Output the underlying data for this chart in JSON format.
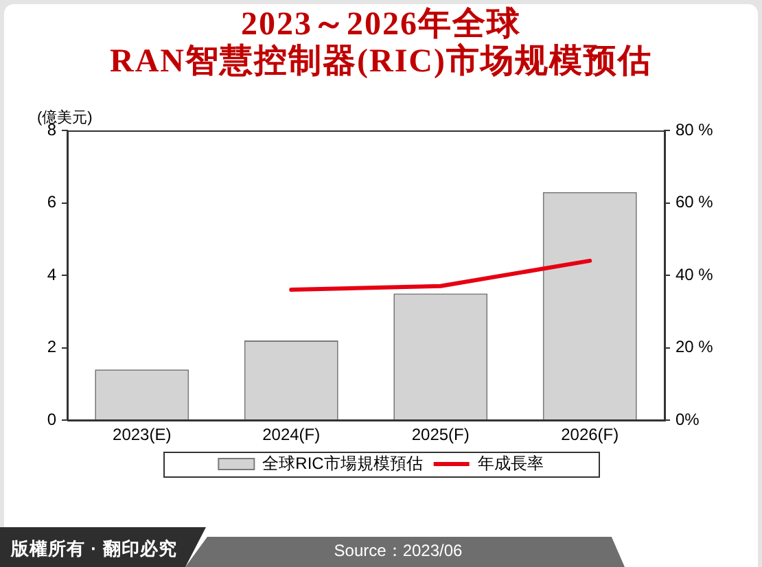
{
  "chart_data": {
    "type": "bar",
    "title": "2023～2026年全球\nRAN智慧控制器(RIC)市场规模预估",
    "ylabel": "(億美元)",
    "categories": [
      "2023(E)",
      "2024(F)",
      "2025(F)",
      "2026(F)"
    ],
    "series": [
      {
        "name": "全球RIC市場規模預估",
        "color": "#d3d3d3",
        "values": [
          1.4,
          2.2,
          3.5,
          6.3
        ]
      },
      {
        "name": "年成長率",
        "type": "line",
        "axis": "y2",
        "color": "#e60012",
        "values": [
          null,
          36,
          37,
          44
        ]
      }
    ],
    "ylim": [
      0,
      8
    ],
    "yticks": [
      0,
      2,
      4,
      6,
      8
    ],
    "y2lim": [
      0,
      80
    ],
    "y2ticks": [
      {
        "value": 0,
        "label": "0%"
      },
      {
        "value": 20,
        "label": "20 %"
      },
      {
        "value": 40,
        "label": "40 %"
      },
      {
        "value": 60,
        "label": "60 %"
      },
      {
        "value": 80,
        "label": "80 %"
      }
    ],
    "legend": "bottom",
    "grid": false,
    "marker": "none",
    "line_style": "solid",
    "annotations": [
      "版權所有 · 翻印必究",
      "Source：2023/06"
    ]
  }
}
